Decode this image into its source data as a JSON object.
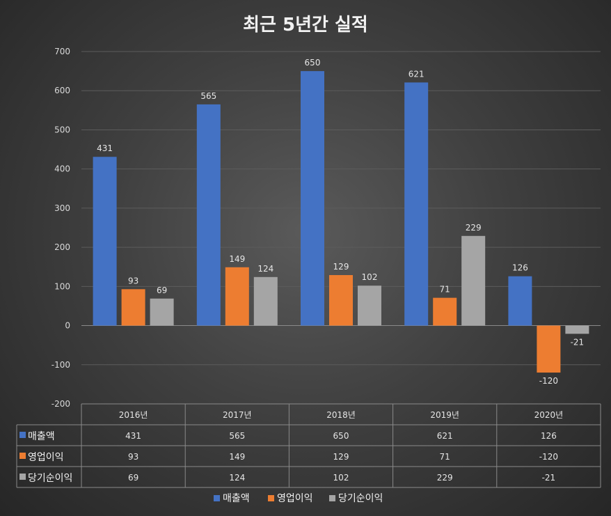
{
  "chart_data": {
    "type": "bar",
    "title": "최근 5년간 실적",
    "categories": [
      "2016년",
      "2017년",
      "2018년",
      "2019년",
      "2020년"
    ],
    "series": [
      {
        "name": "매출액",
        "values": [
          431,
          565,
          650,
          621,
          126
        ],
        "color": "#4472c4"
      },
      {
        "name": "영업이익",
        "values": [
          93,
          149,
          129,
          71,
          -120
        ],
        "color": "#ed7d31"
      },
      {
        "name": "당기순이익",
        "values": [
          69,
          124,
          102,
          229,
          -21
        ],
        "color": "#a5a5a5"
      }
    ],
    "ylim": [
      -200,
      700
    ],
    "yticks": [
      -200,
      -100,
      0,
      100,
      200,
      300,
      400,
      500,
      600,
      700
    ],
    "grid": true,
    "data_labels": true,
    "data_table": true,
    "legend_position": "bottom"
  }
}
